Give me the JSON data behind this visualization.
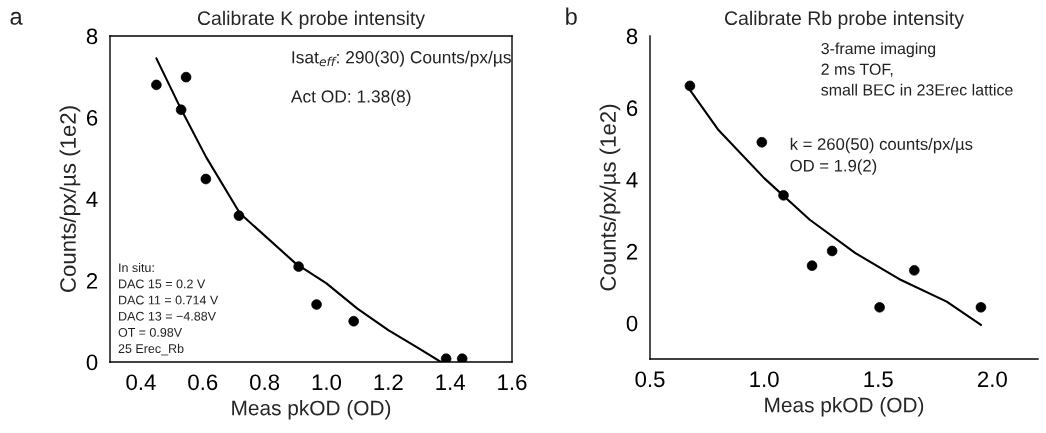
{
  "chart_data": [
    {
      "type": "scatter",
      "title": "Calibrate K probe intensity",
      "xlabel": "Meas pkOD (OD)",
      "ylabel": "Counts/px/µs (1e2)",
      "xlim": [
        0.3,
        1.6
      ],
      "xticks": [
        {
          "value": 0.4,
          "label": "0.4"
        },
        {
          "value": 0.6,
          "label": "0.6"
        },
        {
          "value": 0.8,
          "label": "0.8"
        },
        {
          "value": 1.0,
          "label": "1.0"
        },
        {
          "value": 1.2,
          "label": "1.2"
        },
        {
          "value": 1.4,
          "label": "1.4"
        },
        {
          "value": 1.6,
          "label": "1.6"
        }
      ],
      "ylim": [
        0,
        8
      ],
      "yticks": [
        0,
        2,
        4,
        6,
        8
      ],
      "grid": false,
      "series": [
        {
          "type": "scatter",
          "marker": "circle",
          "color": "#000000",
          "x": [
            0.45,
            0.53,
            0.546,
            0.61,
            0.717,
            0.91,
            0.968,
            1.088,
            1.387,
            1.439
          ],
          "values": [
            6.8,
            6.19,
            6.99,
            4.49,
            3.59,
            2.34,
            1.41,
            1.0,
            0.08,
            0.08
          ]
        },
        {
          "type": "line",
          "marker": "none",
          "color": "#000000",
          "x": [
            0.45,
            0.53,
            0.61,
            0.72,
            0.9,
            1.0,
            1.1,
            1.2,
            1.3,
            1.37
          ],
          "values": [
            7.45,
            6.2,
            5.04,
            3.65,
            2.42,
            1.93,
            1.31,
            0.78,
            0.33,
            0.0
          ]
        }
      ],
      "annotations": [
        "a",
        "Isat$_{eff}$: 290(30) Counts/px/µs",
        "Act OD: 1.38(8)",
        "In situ:\nDAC 15 = 0.2 V\nDAC 11 = 0.714 V\nDAC 13 = −4.88V\nOT = 0.98V\n25 Erec_Rb"
      ]
    },
    {
      "type": "scatter",
      "title": "Calibrate Rb probe intensity",
      "xlabel": "Meas pkOD (OD)",
      "ylabel": "Counts/px/µs (1e2)",
      "xlim": [
        0.5,
        2.2
      ],
      "xticks": [
        {
          "value": 0.5,
          "label": "0.5"
        },
        {
          "value": 1.0,
          "label": "1.0"
        },
        {
          "value": 1.5,
          "label": "1.5"
        },
        {
          "value": 2.0,
          "label": "2.0"
        }
      ],
      "ylim": [
        -1,
        8
      ],
      "yticks": [
        0,
        2,
        4,
        6,
        8
      ],
      "grid": false,
      "series": [
        {
          "type": "scatter",
          "marker": "circle",
          "color": "#000000",
          "x": [
            0.675,
            0.99,
            1.085,
            1.21,
            1.298,
            1.506,
            1.658,
            1.95
          ],
          "values": [
            6.61,
            5.04,
            3.56,
            1.6,
            2.01,
            0.44,
            1.47,
            0.44
          ]
        },
        {
          "type": "line",
          "marker": "none",
          "color": "#000000",
          "x": [
            0.67,
            0.8,
            1.0,
            1.2,
            1.4,
            1.6,
            1.8,
            1.95
          ],
          "values": [
            6.54,
            5.38,
            4.04,
            2.88,
            1.95,
            1.2,
            0.6,
            -0.05
          ]
        }
      ],
      "annotations": [
        "b",
        "3-frame imaging\n2 ms TOF,\nsmall BEC in 23Erec lattice",
        "k = 260(50) counts/px/µs\nOD = 1.9(2)"
      ]
    }
  ]
}
